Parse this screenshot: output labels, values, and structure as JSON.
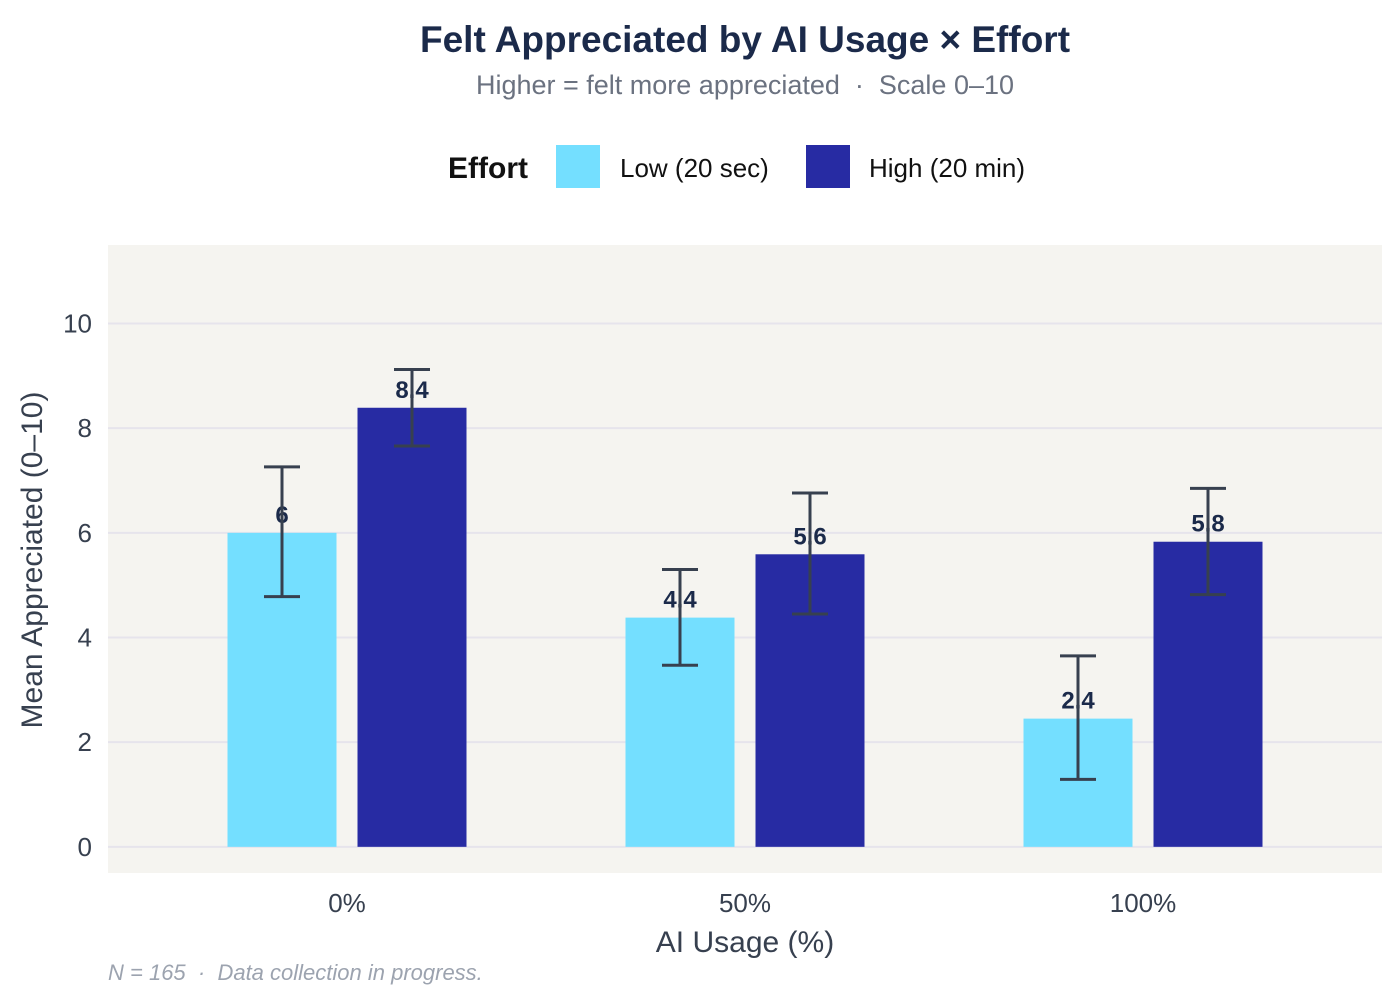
{
  "chart_data": {
    "type": "bar",
    "title": "Felt Appreciated by AI Usage × Effort",
    "subtitle": "Higher = felt more appreciated  ·  Scale 0–10",
    "xlabel": "AI Usage (%)",
    "ylabel": "Mean Appreciated (0–10)",
    "categories": [
      "0%",
      "50%",
      "100%"
    ],
    "ylim": [
      -0.5,
      11.5
    ],
    "yticks": [
      0,
      2,
      4,
      6,
      8,
      10
    ],
    "grid": true,
    "legend": {
      "title": "Effort",
      "placement": "top"
    },
    "series": [
      {
        "name": "Low (20 sec)",
        "color": "#74DFFF",
        "values": [
          6.0,
          4.38,
          2.45
        ],
        "error_low": [
          4.78,
          3.47,
          1.29
        ],
        "error_high": [
          7.26,
          5.3,
          3.65
        ],
        "labels": [
          "6",
          "4.4",
          "2.4"
        ]
      },
      {
        "name": "High (20 min)",
        "color": "#272BA3",
        "values": [
          8.39,
          5.59,
          5.83
        ],
        "error_low": [
          7.66,
          4.45,
          4.82
        ],
        "error_high": [
          9.12,
          6.76,
          6.85
        ],
        "labels": [
          "8.4",
          "5.6",
          "5.8"
        ]
      }
    ],
    "caption": "N = 165  ·  Data collection in progress.",
    "colors": {
      "panel": "#F5F4F0",
      "grid": "#E6E4EC",
      "errorbar": "#37404F",
      "title": "#1B2A4A",
      "label": "#1B2A4A"
    }
  }
}
